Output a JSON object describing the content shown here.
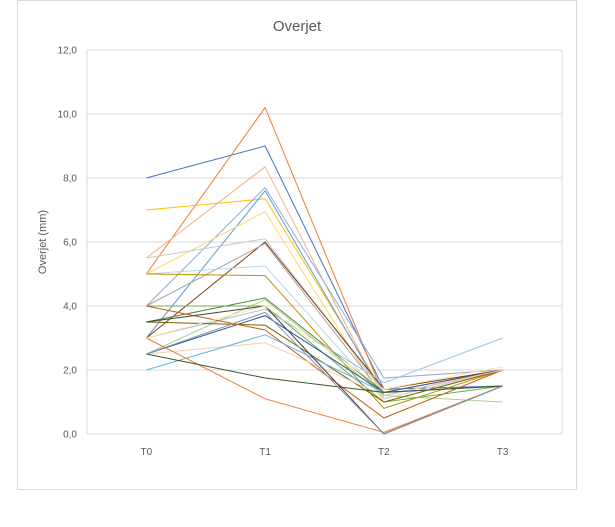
{
  "chart_data": {
    "type": "line",
    "title": "Overjet",
    "xlabel": "",
    "ylabel": "Overjet (mm)",
    "categories": [
      "T0",
      "T1",
      "T2",
      "T3"
    ],
    "ylim": [
      0,
      12
    ],
    "ytick_labels": [
      "0,0",
      "2,0",
      "4,0",
      "6,0",
      "8,0",
      "10,0",
      "12,0"
    ],
    "grid": "horizontal",
    "legend": "none",
    "series": [
      {
        "color": "#4472C4",
        "values": [
          8.0,
          9.0,
          1.4,
          1.5
        ]
      },
      {
        "color": "#ED7D31",
        "values": [
          5.0,
          10.2,
          1.2,
          2.0
        ]
      },
      {
        "color": "#FFC000",
        "values": [
          7.0,
          7.35,
          1.3,
          2.0
        ]
      },
      {
        "color": "#F4B183",
        "values": [
          5.5,
          8.35,
          1.1,
          2.0
        ]
      },
      {
        "color": "#8FAADC",
        "values": [
          4.0,
          7.7,
          1.75,
          2.0
        ]
      },
      {
        "color": "#5B9BD5",
        "values": [
          3.0,
          7.6,
          1.2,
          2.0
        ]
      },
      {
        "color": "#FFD966",
        "values": [
          5.0,
          6.95,
          1.0,
          2.0
        ]
      },
      {
        "color": "#C9C9C9",
        "values": [
          5.5,
          6.1,
          1.3,
          2.0
        ]
      },
      {
        "color": "#843C0C",
        "values": [
          3.0,
          6.0,
          1.4,
          2.0
        ]
      },
      {
        "color": "#A5A5A5",
        "values": [
          4.0,
          5.95,
          1.2,
          2.0
        ]
      },
      {
        "color": "#BDD7EE",
        "values": [
          5.0,
          5.25,
          1.1,
          2.0
        ]
      },
      {
        "color": "#BF9000",
        "values": [
          5.0,
          4.95,
          0.8,
          2.0
        ]
      },
      {
        "color": "#548235",
        "values": [
          3.5,
          4.25,
          1.3,
          1.5
        ]
      },
      {
        "color": "#A9D18E",
        "values": [
          2.5,
          4.2,
          1.2,
          1.0
        ]
      },
      {
        "color": "#70AD47",
        "values": [
          4.0,
          4.0,
          1.0,
          1.5
        ]
      },
      {
        "color": "#9DC3E6",
        "values": [
          3.0,
          3.9,
          1.6,
          3.0
        ]
      },
      {
        "color": "#2F5597",
        "values": [
          2.5,
          3.7,
          1.3,
          2.0
        ]
      },
      {
        "color": "#7F6000",
        "values": [
          3.5,
          3.4,
          1.0,
          2.0
        ]
      },
      {
        "color": "#C55A11",
        "values": [
          4.0,
          3.25,
          0.5,
          2.0
        ]
      },
      {
        "color": "#F8CBAD",
        "values": [
          2.5,
          2.85,
          1.2,
          2.0
        ]
      },
      {
        "color": "#5FB8E6",
        "values": [
          2.0,
          3.1,
          1.3,
          1.5
        ]
      },
      {
        "color": "#ED7D31",
        "values": [
          3.0,
          1.1,
          0.05,
          1.5
        ]
      },
      {
        "color": "#375623",
        "values": [
          2.5,
          1.75,
          1.3,
          1.5
        ]
      },
      {
        "color": "#404040",
        "values": [
          3.5,
          4.0,
          0.0,
          1.5
        ]
      },
      {
        "color": "#8497B0",
        "values": [
          2.5,
          3.8,
          0.0,
          1.5
        ]
      },
      {
        "color": "#FFE699",
        "values": [
          3.0,
          4.0,
          1.4,
          2.1
        ]
      }
    ]
  }
}
